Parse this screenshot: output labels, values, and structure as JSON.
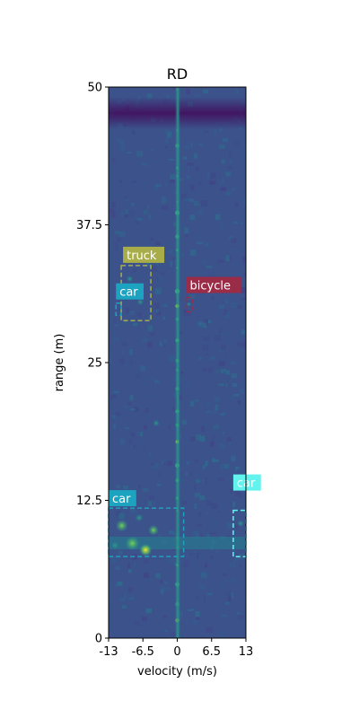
{
  "chart_data": {
    "type": "heatmap",
    "title": "RD",
    "xlabel": "velocity (m/s)",
    "ylabel": "range (m)",
    "xlim": [
      -13,
      13
    ],
    "ylim": [
      0,
      50
    ],
    "xticks": [
      -13,
      -6.5,
      0,
      6.5,
      13
    ],
    "xtick_labels": [
      "-13",
      "-6.5",
      "0",
      "6.5",
      "13"
    ],
    "yticks": [
      0,
      12.5,
      25,
      37.5,
      50
    ],
    "ytick_labels": [
      "0",
      "12.5",
      "25",
      "37.5",
      "50"
    ],
    "colormap": "viridis",
    "background_color": "#3b528b",
    "annotations": [
      {
        "label": "truck",
        "color": "#a8ad4a",
        "velocity": [
          -10.6,
          -5.0
        ],
        "range": [
          28.8,
          33.8
        ]
      },
      {
        "label": "car",
        "color": "#1ba3c0",
        "velocity": [
          -11.6,
          -10.6
        ],
        "range": [
          29.3,
          30.4
        ]
      },
      {
        "label": "bicycle",
        "color": "#9b2c47",
        "velocity": [
          1.7,
          2.8
        ],
        "range": [
          29.6,
          30.9
        ]
      },
      {
        "label": "car",
        "color": "#1ba3c0",
        "velocity": [
          -13,
          1.2
        ],
        "range": [
          7.4,
          11.8
        ]
      },
      {
        "label": "car",
        "color": "#62f3ee",
        "velocity": [
          10.6,
          13
        ],
        "range": [
          7.4,
          11.6
        ]
      }
    ]
  }
}
